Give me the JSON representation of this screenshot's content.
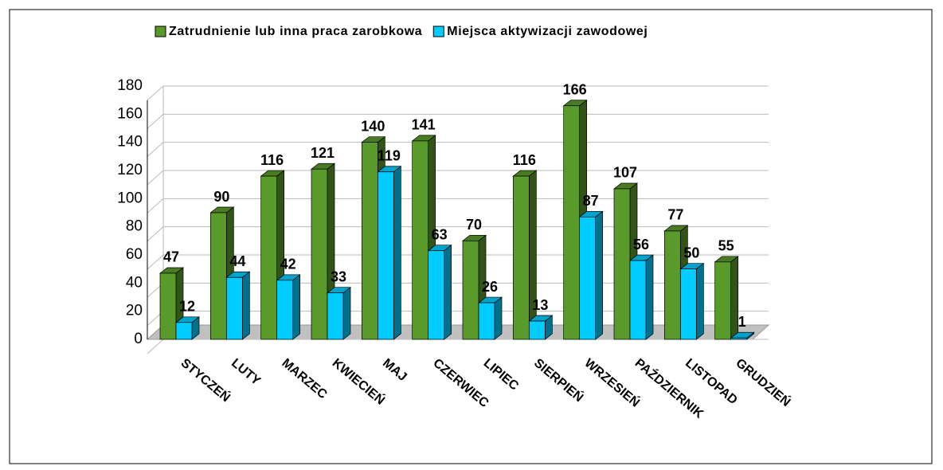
{
  "chart_data": {
    "type": "bar",
    "categories": [
      "STYCZEŃ",
      "LUTY",
      "MARZEC",
      "KWIECIEŃ",
      "MAJ",
      "CZERWIEC",
      "LIPIEC",
      "SIERPIEŃ",
      "WRZESIEŃ",
      "PAŹDZIERNIK",
      "LISTOPAD",
      "GRUDZIEŃ"
    ],
    "series": [
      {
        "name": "Zatrudnienie lub inna praca zarobkowa",
        "color": "#5a9a2a",
        "values": [
          47,
          90,
          116,
          121,
          140,
          141,
          70,
          116,
          166,
          107,
          77,
          55
        ]
      },
      {
        "name": "Miejsca aktywizacji zawodowej",
        "color": "#00ccff",
        "values": [
          12,
          44,
          42,
          33,
          119,
          63,
          26,
          13,
          87,
          56,
          50,
          1
        ]
      }
    ],
    "ylim": [
      0,
      180
    ],
    "yticks": [
      0,
      20,
      40,
      60,
      80,
      100,
      120,
      140,
      160,
      180
    ],
    "grid": true,
    "legend": "top"
  }
}
